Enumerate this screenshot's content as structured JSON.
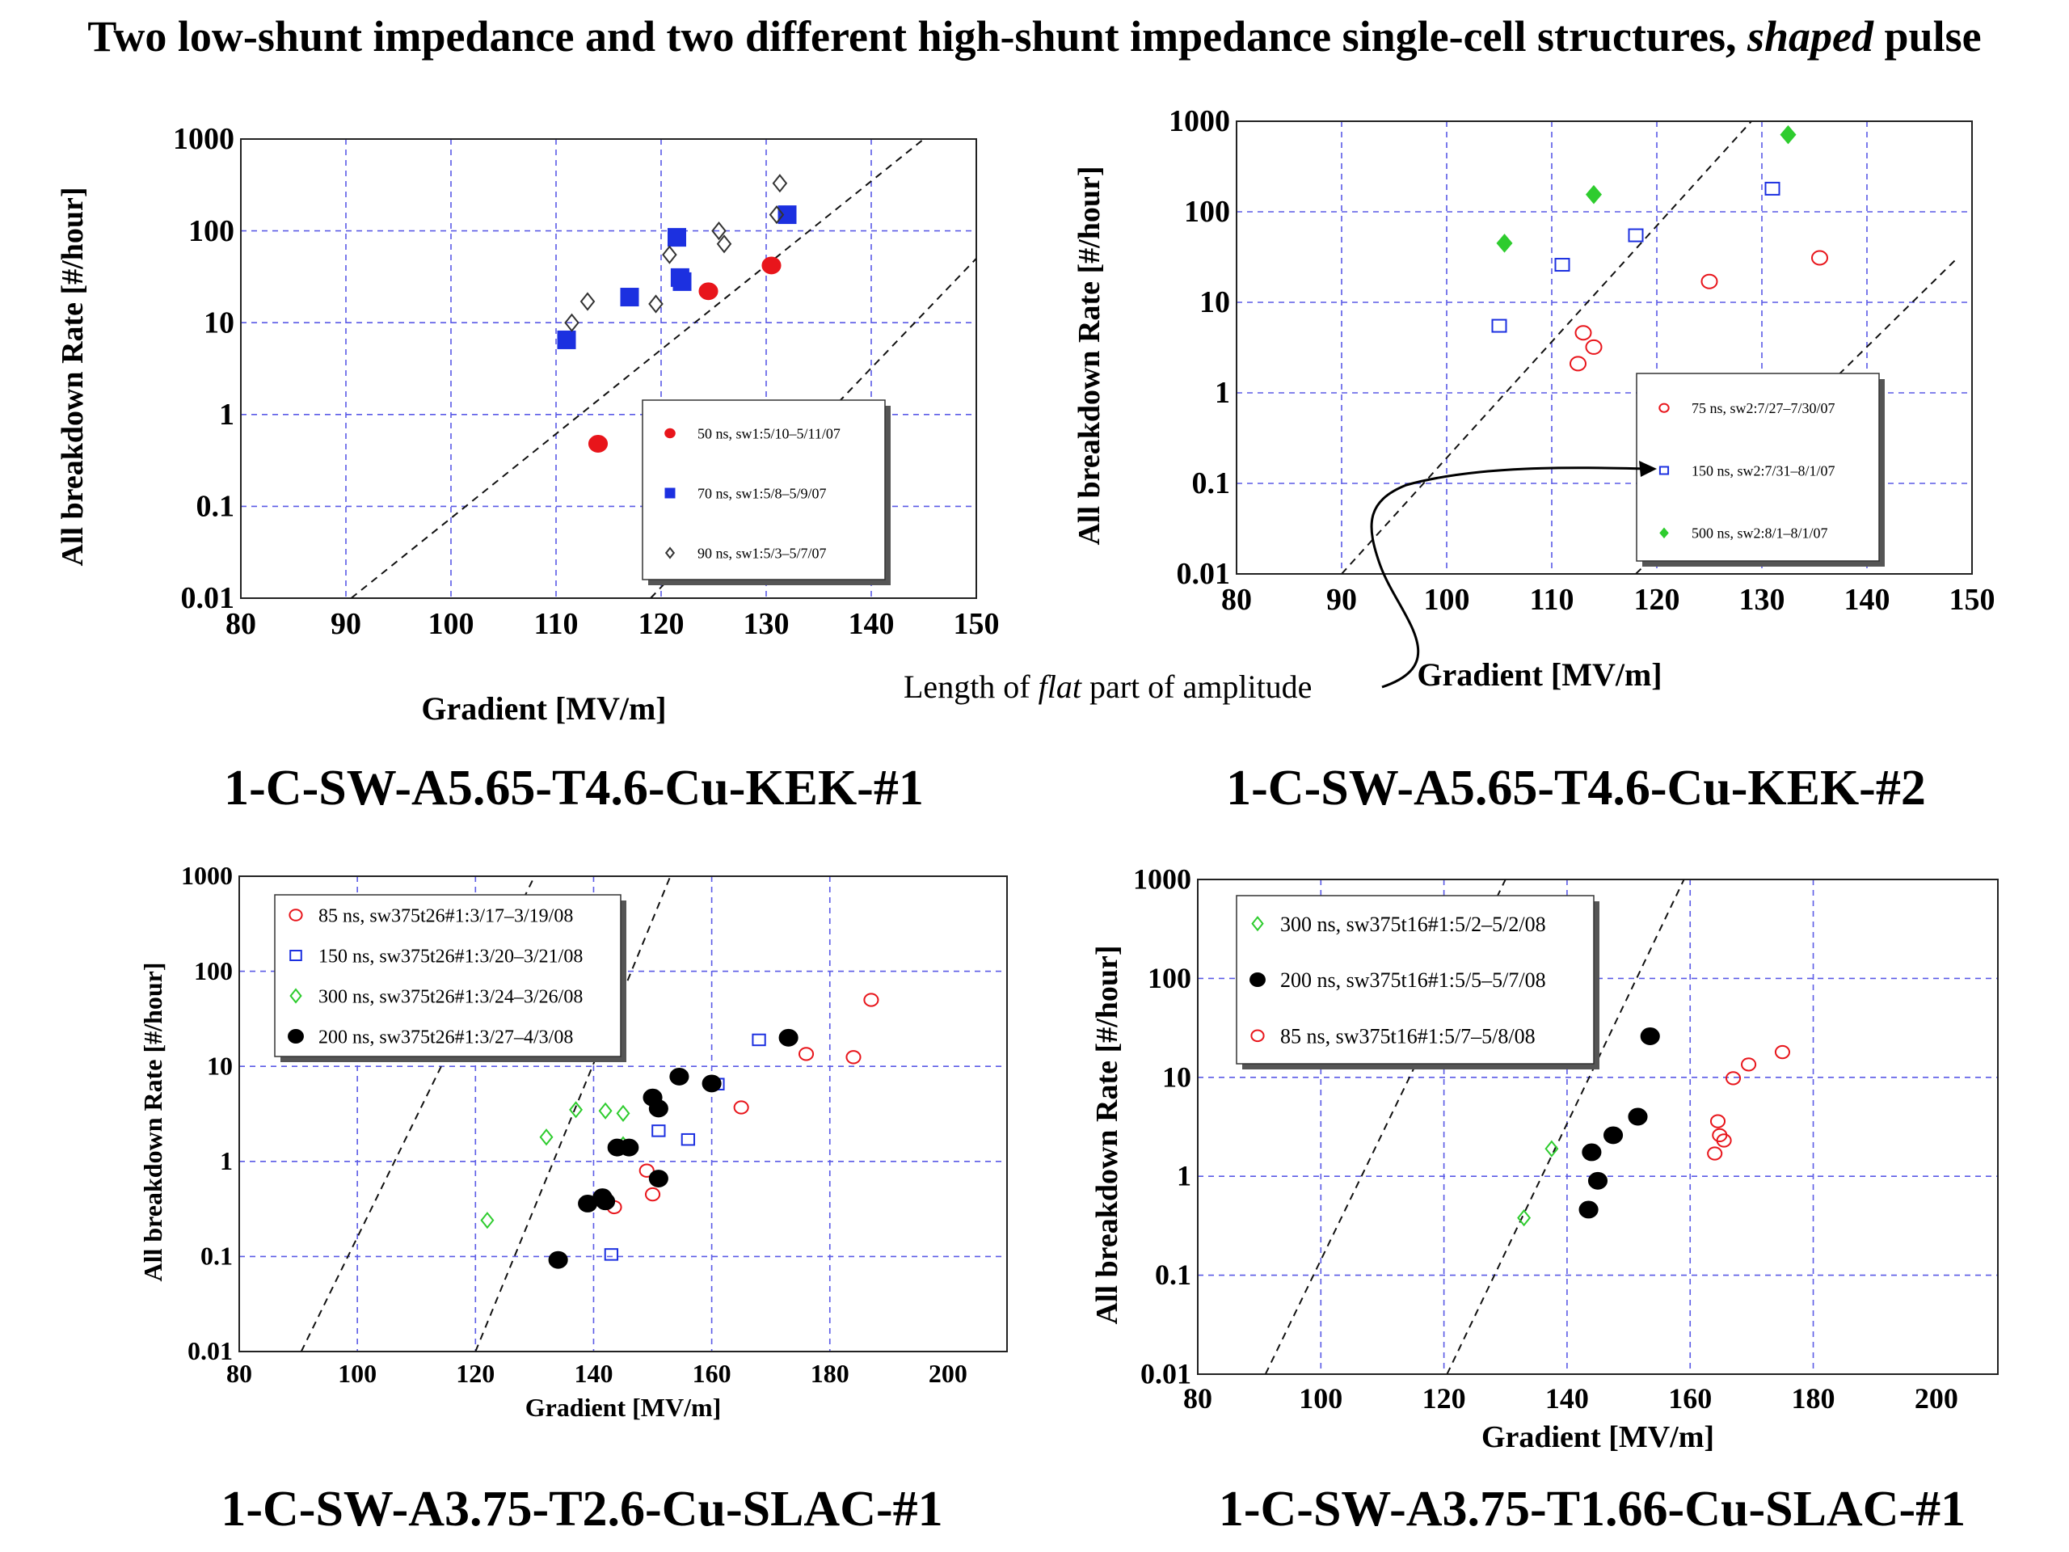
{
  "title": {
    "part1": "Two low-shunt impedance and two different high-shunt impedance  single-cell structures, ",
    "italic": "shaped",
    "part2": " pulse"
  },
  "annotation": {
    "part1": "Length of ",
    "italic": "flat",
    "part2": " part of amplitude"
  },
  "colors": {
    "red": "#e8151b",
    "blue": "#1c30e0",
    "green": "#2ecc2e",
    "black": "#000000",
    "grid": "#5a5ae6"
  },
  "chart_data": [
    {
      "type": "scatter",
      "panel_label": "1-C-SW-A5.65-T4.6-Cu-KEK-#1",
      "xlabel": "Gradient [MV/m]",
      "ylabel": "All breakdown Rate [#/hour]",
      "xlim": [
        80,
        150
      ],
      "ylim": [
        0.01,
        1000
      ],
      "yscale": "log",
      "x_ticks": [
        "80",
        "90",
        "100",
        "110",
        "120",
        "130",
        "140",
        "150"
      ],
      "y_ticks": [
        "0.01",
        "0.1",
        "1",
        "10",
        "100",
        "1000"
      ],
      "grid": true,
      "legend_position": "bottom-right",
      "reference_lines": [
        {
          "points": [
            [
              90.5,
              0.01
            ],
            [
              145,
              1000
            ]
          ]
        },
        {
          "points": [
            [
              119,
              0.01
            ],
            [
              150,
              50
            ]
          ]
        }
      ],
      "series": [
        {
          "name": "50 ns, sw1:5/10–5/11/07",
          "marker": "filled-circle",
          "color": "#e8151b",
          "points": [
            [
              114,
              0.48
            ],
            [
              124.5,
              22
            ],
            [
              130.5,
              42
            ]
          ]
        },
        {
          "name": "70 ns, sw1:5/8–5/9/07",
          "marker": "filled-square",
          "color": "#1c30e0",
          "points": [
            [
              111,
              6.5
            ],
            [
              117,
              19
            ],
            [
              121.5,
              85
            ],
            [
              121.8,
              31
            ],
            [
              122,
              28
            ],
            [
              132,
              150
            ]
          ]
        },
        {
          "name": "90 ns, sw1:5/3–5/7/07",
          "marker": "open-diamond",
          "color": "#333333",
          "points": [
            [
              111.5,
              10
            ],
            [
              113,
              17
            ],
            [
              119.5,
              16
            ],
            [
              120.8,
              55
            ],
            [
              125.5,
              100
            ],
            [
              126,
              72
            ],
            [
              131,
              150
            ],
            [
              131.3,
              330
            ]
          ]
        }
      ]
    },
    {
      "type": "scatter",
      "panel_label": "1-C-SW-A5.65-T4.6-Cu-KEK-#2",
      "xlabel": "Gradient [MV/m]",
      "ylabel": "All breakdown Rate [#/hour]",
      "xlim": [
        80,
        150
      ],
      "ylim": [
        0.01,
        1000
      ],
      "yscale": "log",
      "x_ticks": [
        "80",
        "90",
        "100",
        "110",
        "120",
        "130",
        "140",
        "150"
      ],
      "y_ticks": [
        "0.01",
        "0.1",
        "1",
        "10",
        "100",
        "1000"
      ],
      "grid": true,
      "legend_position": "bottom-right",
      "reference_lines": [
        {
          "points": [
            [
              90,
              0.01
            ],
            [
              129,
              1000
            ]
          ]
        },
        {
          "points": [
            [
              118,
              0.01
            ],
            [
              148.5,
              30
            ]
          ]
        }
      ],
      "series": [
        {
          "name": "75 ns, sw2:7/27–7/30/07",
          "marker": "open-circle",
          "color": "#e8151b",
          "points": [
            [
              112.5,
              2.1
            ],
            [
              113,
              4.6
            ],
            [
              114,
              3.2
            ],
            [
              125,
              17
            ],
            [
              135.5,
              31
            ]
          ]
        },
        {
          "name": "150 ns, sw2:7/31–8/1/07",
          "marker": "open-square",
          "color": "#1c30e0",
          "points": [
            [
              105,
              5.5
            ],
            [
              111,
              26
            ],
            [
              118,
              55
            ],
            [
              131,
              180
            ]
          ]
        },
        {
          "name": "500 ns, sw2:8/1–8/1/07",
          "marker": "filled-diamond",
          "color": "#2ecc2e",
          "points": [
            [
              105.5,
              45
            ],
            [
              114,
              155
            ],
            [
              132.5,
              710
            ]
          ]
        }
      ]
    },
    {
      "type": "scatter",
      "panel_label": "1-C-SW-A3.75-T2.6-Cu-SLAC-#1",
      "xlabel": "Gradient [MV/m]",
      "ylabel": "All breakdown Rate [#/hour]",
      "xlim": [
        80,
        210
      ],
      "ylim": [
        0.01,
        1000
      ],
      "yscale": "log",
      "x_ticks": [
        "80",
        "100",
        "120",
        "140",
        "160",
        "180",
        "200"
      ],
      "y_ticks": [
        "0.01",
        "0.1",
        "1",
        "10",
        "100",
        "1000"
      ],
      "grid": true,
      "legend_position": "top-left",
      "reference_lines": [
        {
          "points": [
            [
              90.5,
              0.01
            ],
            [
              130,
              1000
            ]
          ]
        },
        {
          "points": [
            [
              120,
              0.01
            ],
            [
              153,
              1000
            ]
          ]
        }
      ],
      "series": [
        {
          "name": "85 ns, sw375t26#1:3/17–3/19/08",
          "marker": "open-circle",
          "color": "#e8151b",
          "points": [
            [
              143.5,
              0.33
            ],
            [
              149,
              0.8
            ],
            [
              150,
              0.45
            ],
            [
              165,
              3.7
            ],
            [
              176,
              13.5
            ],
            [
              184,
              12.5
            ],
            [
              187,
              50
            ]
          ]
        },
        {
          "name": "150 ns, sw375t26#1:3/20–3/21/08",
          "marker": "open-square",
          "color": "#1c30e0",
          "points": [
            [
              143,
              0.105
            ],
            [
              151,
              2.1
            ],
            [
              156,
              1.7
            ],
            [
              161,
              6.5
            ],
            [
              168,
              19
            ]
          ]
        },
        {
          "name": "300 ns, sw375t26#1:3/24–3/26/08",
          "marker": "open-diamond",
          "color": "#2ecc2e",
          "points": [
            [
              122,
              0.24
            ],
            [
              132,
              1.8
            ],
            [
              137,
              3.5
            ],
            [
              142,
              3.4
            ],
            [
              145,
              3.2
            ],
            [
              145,
              1.5
            ]
          ]
        },
        {
          "name": "200 ns, sw375t26#1:3/27–4/3/08",
          "marker": "filled-circle",
          "color": "#000000",
          "points": [
            [
              134,
              0.092
            ],
            [
              139,
              0.36
            ],
            [
              141.5,
              0.42
            ],
            [
              142,
              0.38
            ],
            [
              144,
              1.4
            ],
            [
              146,
              1.4
            ],
            [
              150,
              4.7
            ],
            [
              151,
              3.6
            ],
            [
              151,
              0.66
            ],
            [
              154.5,
              7.8
            ],
            [
              160,
              6.6
            ],
            [
              173,
              20
            ]
          ]
        }
      ]
    },
    {
      "type": "scatter",
      "panel_label": "1-C-SW-A3.75-T1.66-Cu-SLAC-#1",
      "xlabel": "Gradient [MV/m]",
      "ylabel": "All breakdown Rate [#/hour]",
      "xlim": [
        80,
        210
      ],
      "ylim": [
        0.01,
        1000
      ],
      "yscale": "log",
      "x_ticks": [
        "80",
        "100",
        "120",
        "140",
        "160",
        "180",
        "200"
      ],
      "y_ticks": [
        "0.01",
        "0.1",
        "1",
        "10",
        "100",
        "1000"
      ],
      "grid": true,
      "legend_position": "top-left",
      "reference_lines": [
        {
          "points": [
            [
              91,
              0.01
            ],
            [
              130,
              1000
            ]
          ]
        },
        {
          "points": [
            [
              120.5,
              0.01
            ],
            [
              159,
              1000
            ]
          ]
        }
      ],
      "series": [
        {
          "name": "300 ns, sw375t16#1:5/2–5/2/08",
          "marker": "open-diamond",
          "color": "#2ecc2e",
          "points": [
            [
              133,
              0.38
            ],
            [
              137.5,
              1.9
            ]
          ]
        },
        {
          "name": "200 ns, sw375t16#1:5/5–5/7/08",
          "marker": "filled-circle",
          "color": "#000000",
          "points": [
            [
              143.5,
              0.46
            ],
            [
              144,
              1.75
            ],
            [
              145,
              0.9
            ],
            [
              147.5,
              2.6
            ],
            [
              151.5,
              4.0
            ],
            [
              153.5,
              26
            ]
          ]
        },
        {
          "name": "85 ns, sw375t16#1:5/7–5/8/08",
          "marker": "open-circle",
          "color": "#e8151b",
          "points": [
            [
              164,
              1.7
            ],
            [
              164.5,
              3.6
            ],
            [
              164.8,
              2.6
            ],
            [
              165.5,
              2.3
            ],
            [
              167,
              9.8
            ],
            [
              169.5,
              13.5
            ],
            [
              175,
              18
            ]
          ]
        }
      ]
    }
  ]
}
